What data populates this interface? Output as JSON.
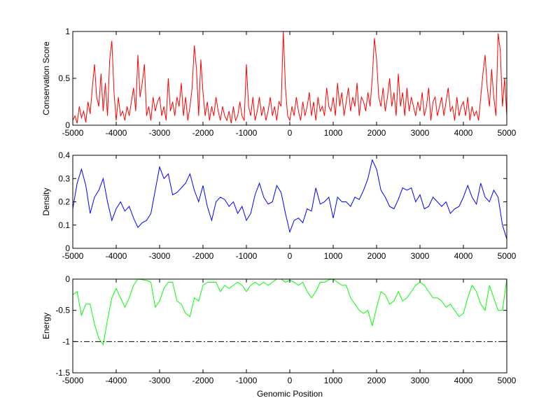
{
  "chart_data": [
    {
      "type": "line",
      "ylabel": "Conservation Score",
      "xlabel": "",
      "xlim": [
        -5000,
        5000
      ],
      "ylim": [
        0,
        1
      ],
      "xticks": [
        -5000,
        -4000,
        -3000,
        -2000,
        -1000,
        0,
        1000,
        2000,
        3000,
        4000,
        5000
      ],
      "yticks": [
        0,
        0.5,
        1
      ],
      "color": "#ff0000",
      "x_start": -5000,
      "x_step": 50,
      "values": [
        0.05,
        0.1,
        0.02,
        0.2,
        0.08,
        0.15,
        0.03,
        0.25,
        0.12,
        0.4,
        0.65,
        0.3,
        0.2,
        0.55,
        0.15,
        0.45,
        0.1,
        0.7,
        0.9,
        0.35,
        0.05,
        0.3,
        0.1,
        0.15,
        0.05,
        0.2,
        0.1,
        0.25,
        0.4,
        0.15,
        0.75,
        0.3,
        0.45,
        0.65,
        0.1,
        0.2,
        0.05,
        0.3,
        0.15,
        0.25,
        0.3,
        0.1,
        0.2,
        0.05,
        0.5,
        0.15,
        0.25,
        0.1,
        0.3,
        0.2,
        0.45,
        0.1,
        0.3,
        0.05,
        0.2,
        0.4,
        0.85,
        0.6,
        0.1,
        0.7,
        0.35,
        0.1,
        0.25,
        0.05,
        0.2,
        0.1,
        0.3,
        0.15,
        0.05,
        0.2,
        0.1,
        0.05,
        0.15,
        0.02,
        0.2,
        0.05,
        0.1,
        0.25,
        0.1,
        0.05,
        0.65,
        0.2,
        0.1,
        0.3,
        0.05,
        0.15,
        0.3,
        0.1,
        0.2,
        0.05,
        0.15,
        0.3,
        0.1,
        0.2,
        0.05,
        0.25,
        0.2,
        1.0,
        0.4,
        0.1,
        0.05,
        0.2,
        0.1,
        0.3,
        0.15,
        0.05,
        0.25,
        0.1,
        0.2,
        0.35,
        0.1,
        0.25,
        0.05,
        0.3,
        0.15,
        0.2,
        0.1,
        0.4,
        0.2,
        0.15,
        0.3,
        0.1,
        0.45,
        0.2,
        0.35,
        0.1,
        0.25,
        0.4,
        0.15,
        0.3,
        0.2,
        0.45,
        0.1,
        0.3,
        0.25,
        0.15,
        0.35,
        0.2,
        0.5,
        0.93,
        0.7,
        0.3,
        0.2,
        0.4,
        0.15,
        0.3,
        0.5,
        0.2,
        0.35,
        0.1,
        0.55,
        0.2,
        0.35,
        0.1,
        0.4,
        0.15,
        0.3,
        0.2,
        0.1,
        0.25,
        0.15,
        0.35,
        0.1,
        0.2,
        0.4,
        0.05,
        0.25,
        0.3,
        0.1,
        0.2,
        0.3,
        0.1,
        0.25,
        0.4,
        0.15,
        0.2,
        0.05,
        0.3,
        0.1,
        0.2,
        0.25,
        0.1,
        0.3,
        0.05,
        0.2,
        0.1,
        0.15,
        0.05,
        0.3,
        0.55,
        0.75,
        0.4,
        0.2,
        0.6,
        0.3,
        0.1,
        0.98,
        0.8,
        0.2,
        0.5,
        0.1
      ]
    },
    {
      "type": "line",
      "ylabel": "Density",
      "xlabel": "",
      "xlim": [
        -5000,
        5000
      ],
      "ylim": [
        0,
        0.4
      ],
      "xticks": [
        -5000,
        -4000,
        -3000,
        -2000,
        -1000,
        0,
        1000,
        2000,
        3000,
        4000,
        5000
      ],
      "yticks": [
        0,
        0.1,
        0.2,
        0.3,
        0.4
      ],
      "color": "#0000ff",
      "x_start": -5000,
      "x_step": 100,
      "values": [
        0.17,
        0.28,
        0.34,
        0.27,
        0.15,
        0.22,
        0.25,
        0.3,
        0.2,
        0.12,
        0.17,
        0.2,
        0.16,
        0.18,
        0.13,
        0.09,
        0.11,
        0.12,
        0.15,
        0.25,
        0.35,
        0.3,
        0.32,
        0.23,
        0.24,
        0.26,
        0.28,
        0.32,
        0.25,
        0.2,
        0.27,
        0.18,
        0.12,
        0.2,
        0.22,
        0.21,
        0.18,
        0.2,
        0.15,
        0.18,
        0.12,
        0.15,
        0.23,
        0.28,
        0.22,
        0.19,
        0.2,
        0.27,
        0.24,
        0.15,
        0.07,
        0.12,
        0.13,
        0.11,
        0.17,
        0.16,
        0.26,
        0.19,
        0.2,
        0.22,
        0.13,
        0.22,
        0.2,
        0.2,
        0.18,
        0.22,
        0.21,
        0.25,
        0.3,
        0.38,
        0.34,
        0.25,
        0.22,
        0.18,
        0.17,
        0.21,
        0.26,
        0.25,
        0.26,
        0.2,
        0.23,
        0.17,
        0.18,
        0.22,
        0.2,
        0.18,
        0.2,
        0.15,
        0.17,
        0.18,
        0.22,
        0.27,
        0.22,
        0.19,
        0.28,
        0.22,
        0.2,
        0.25,
        0.22,
        0.1,
        0.04
      ]
    },
    {
      "type": "line",
      "ylabel": "Energy",
      "xlabel": "Genomic Position",
      "xlim": [
        -5000,
        5000
      ],
      "ylim": [
        -1.5,
        0
      ],
      "xticks": [
        -5000,
        -4000,
        -3000,
        -2000,
        -1000,
        0,
        1000,
        2000,
        3000,
        4000,
        5000
      ],
      "yticks": [
        -1.5,
        -1,
        -0.5,
        0
      ],
      "color": "#00ff00",
      "threshold": {
        "y": -1,
        "color": "#000000",
        "style": "dash-dot"
      },
      "x_start": -5000,
      "x_step": 100,
      "values": [
        -0.25,
        -0.2,
        -0.58,
        -0.4,
        -0.4,
        -0.72,
        -0.95,
        -1.05,
        -0.65,
        -0.3,
        -0.15,
        -0.3,
        -0.45,
        -0.3,
        -0.1,
        0,
        -0.01,
        -0.02,
        -0.05,
        -0.45,
        -0.35,
        -0.15,
        -0.05,
        -0.05,
        -0.35,
        -0.4,
        -0.55,
        -0.6,
        -0.3,
        -0.35,
        -0.1,
        -0.05,
        -0.05,
        -0.05,
        -0.2,
        -0.1,
        -0.15,
        -0.1,
        -0.05,
        -0.1,
        -0.2,
        -0.1,
        -0.05,
        -0.1,
        -0.05,
        -0.1,
        -0.05,
        0,
        0,
        -0.05,
        -0.02,
        -0.05,
        -0.1,
        -0.05,
        -0.2,
        -0.3,
        -0.2,
        -0.05,
        -0.05,
        -0.01,
        0,
        -0.05,
        -0.1,
        -0.1,
        -0.3,
        -0.4,
        -0.5,
        -0.55,
        -0.5,
        -0.75,
        -0.45,
        -0.2,
        -0.25,
        -0.4,
        -0.35,
        -0.2,
        -0.35,
        -0.3,
        -0.2,
        -0.1,
        -0.05,
        -0.1,
        -0.2,
        -0.3,
        -0.3,
        -0.35,
        -0.45,
        -0.4,
        -0.5,
        -0.6,
        -0.55,
        -0.3,
        -0.1,
        -0.2,
        -0.4,
        -0.5,
        -0.1,
        -0.3,
        -0.5,
        -0.5,
        0
      ]
    }
  ]
}
